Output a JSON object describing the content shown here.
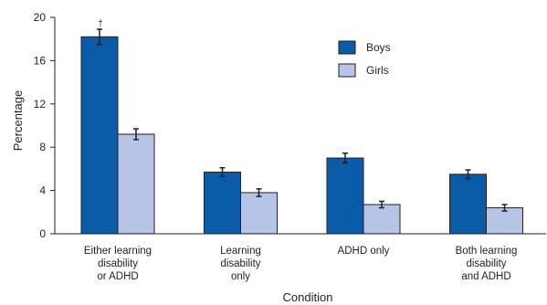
{
  "chart_data": {
    "type": "bar",
    "title": "",
    "xlabel": "Condition",
    "ylabel": "Percentage",
    "ylim": [
      0,
      20
    ],
    "yticks": [
      0,
      4,
      8,
      12,
      16,
      20
    ],
    "grid": false,
    "legend_position": "top-right",
    "categories": [
      [
        "Either learning",
        "disability",
        "or ADHD"
      ],
      [
        "Learning",
        "disability",
        "only"
      ],
      [
        "ADHD only"
      ],
      [
        "Both learning",
        "disability",
        "and ADHD"
      ]
    ],
    "series": [
      {
        "name": "Boys",
        "color": "#0b5ca8",
        "values": [
          18.2,
          5.7,
          7.0,
          5.5
        ],
        "error": [
          0.7,
          0.4,
          0.45,
          0.4
        ]
      },
      {
        "name": "Girls",
        "color": "#b7c4e6",
        "values": [
          9.2,
          3.8,
          2.7,
          2.4
        ],
        "error": [
          0.5,
          0.35,
          0.3,
          0.3
        ]
      }
    ],
    "annotations": [
      {
        "category_index": 0,
        "series_index": 0,
        "text": "†"
      }
    ]
  }
}
